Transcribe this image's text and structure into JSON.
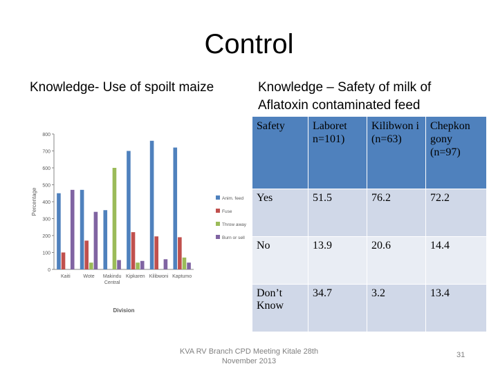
{
  "slide": {
    "title": "Control",
    "left_heading": "Knowledge- Use of spoilt maize",
    "right_heading": "Knowledge – Safety of milk of Aflatoxin  contaminated feed",
    "footer": "KVA RV Branch CPD Meeting Kitale 28th November 2013",
    "page_number": "31"
  },
  "chart_data": {
    "type": "bar",
    "categories": [
      "Kaiti",
      "Wote",
      "Makindu Central",
      "Kipkaren",
      "Kilibwoni",
      "Kaptumo"
    ],
    "series": [
      {
        "name": "Anim. feed",
        "color": "#4f81bd",
        "values": [
          450,
          470,
          350,
          700,
          760,
          720
        ]
      },
      {
        "name": "Fuse",
        "color": "#c0504d",
        "values": [
          100,
          170,
          0,
          220,
          195,
          190
        ]
      },
      {
        "name": "Throw away",
        "color": "#9bbb59",
        "values": [
          0,
          40,
          600,
          40,
          0,
          70
        ]
      },
      {
        "name": "Burn or sell",
        "color": "#8064a2",
        "values": [
          470,
          340,
          55,
          50,
          60,
          40
        ]
      }
    ],
    "ylim": [
      0,
      800
    ],
    "yticks": [
      "0",
      "100",
      "200",
      "300",
      "400",
      "500",
      "600",
      "700",
      "800"
    ],
    "xlabel": "Division",
    "ylabel": "Percentage",
    "legend_position": "right",
    "grid": false
  },
  "table": {
    "headers": [
      "Safety",
      "Laboret n=101)",
      "Kilibwon i (n=63)",
      "Chepkon gony (n=97)"
    ],
    "rows": [
      [
        "Yes",
        "51.5",
        "76.2",
        "72.2"
      ],
      [
        "No",
        "13.9",
        "20.6",
        "14.4"
      ],
      [
        "Don’t Know",
        "34.7",
        "3.2",
        "13.4"
      ]
    ]
  }
}
